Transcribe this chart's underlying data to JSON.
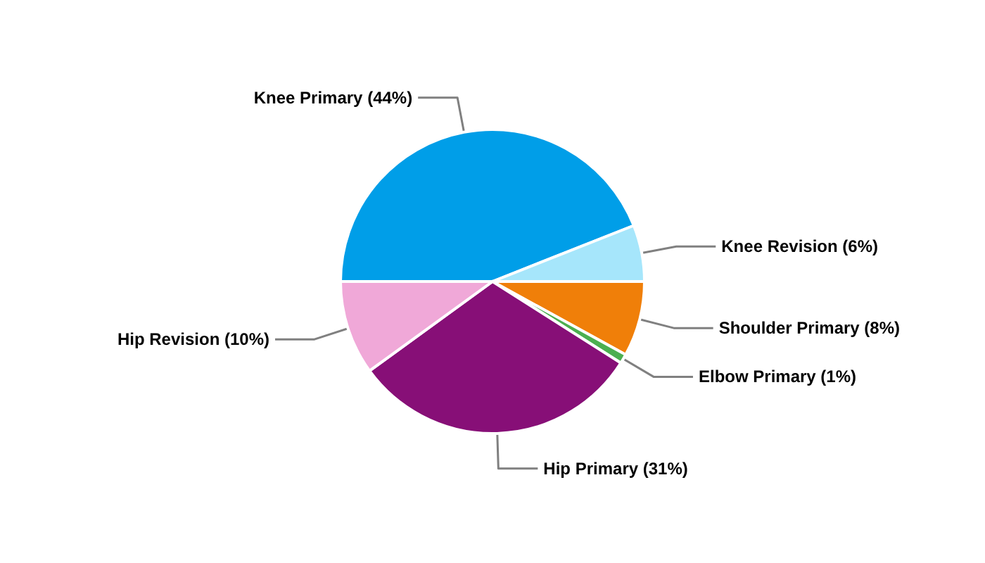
{
  "chart_data": {
    "type": "pie",
    "categories": [
      "Knee Primary (44%)",
      "Knee Revision (6%)",
      "Shoulder Primary (8%)",
      "Elbow Primary (1%)",
      "Hip Primary (31%)",
      "Hip Revision (10%)"
    ],
    "values": [
      44,
      6,
      8,
      1,
      31,
      10
    ],
    "colors": [
      "#009ee8",
      "#a6e6fb",
      "#f07f09",
      "#4caf50",
      "#870f77",
      "#f0a8d8"
    ]
  }
}
